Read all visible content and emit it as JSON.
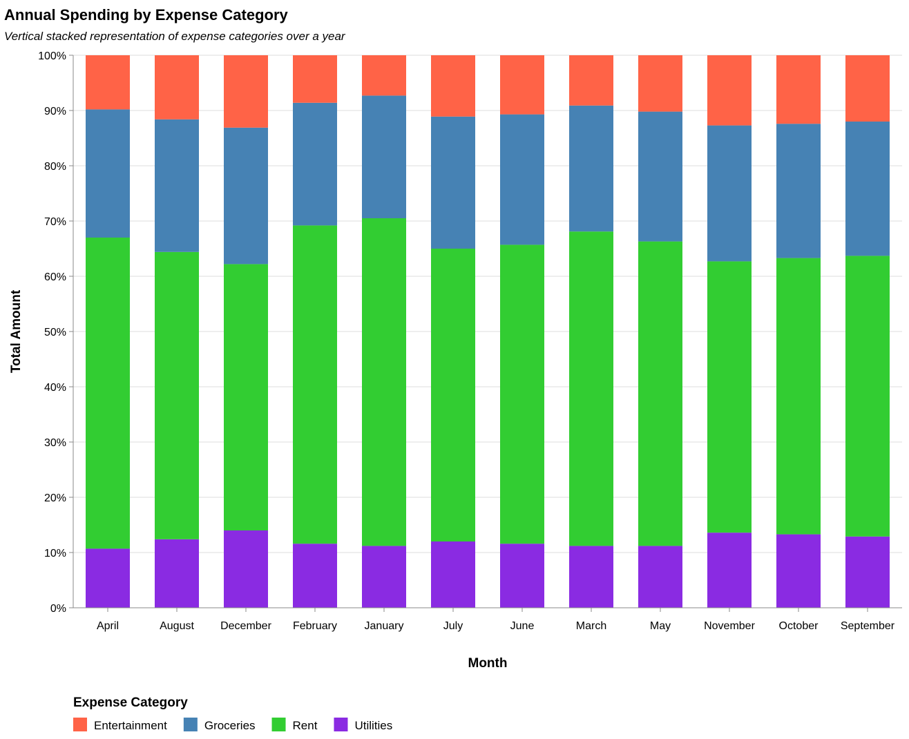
{
  "chart_data": {
    "type": "bar",
    "stacked": "normalize",
    "title": "Annual Spending by Expense Category",
    "subtitle": "Vertical stacked representation of expense categories over a year",
    "xlabel": "Month",
    "ylabel": "Total Amount",
    "ylim": [
      0,
      1
    ],
    "yticks": [
      "0%",
      "10%",
      "20%",
      "30%",
      "40%",
      "50%",
      "60%",
      "70%",
      "80%",
      "90%",
      "100%"
    ],
    "grid": true,
    "legend_title": "Expense Category",
    "legend_position": "bottom-left",
    "categories": [
      "April",
      "August",
      "December",
      "February",
      "January",
      "July",
      "June",
      "March",
      "May",
      "November",
      "October",
      "September"
    ],
    "series": [
      {
        "name": "Utilities",
        "color": "#8a2be2",
        "values": [
          0.107,
          0.124,
          0.14,
          0.116,
          0.112,
          0.12,
          0.116,
          0.112,
          0.112,
          0.136,
          0.133,
          0.129
        ]
      },
      {
        "name": "Rent",
        "color": "#32cd32",
        "values": [
          0.563,
          0.52,
          0.482,
          0.576,
          0.593,
          0.53,
          0.541,
          0.569,
          0.551,
          0.491,
          0.5,
          0.508
        ]
      },
      {
        "name": "Groceries",
        "color": "#4682b4",
        "values": [
          0.232,
          0.24,
          0.247,
          0.222,
          0.222,
          0.239,
          0.236,
          0.228,
          0.235,
          0.246,
          0.243,
          0.243
        ]
      },
      {
        "name": "Entertainment",
        "color": "#ff6347",
        "values": [
          0.098,
          0.116,
          0.131,
          0.086,
          0.073,
          0.111,
          0.107,
          0.091,
          0.102,
          0.127,
          0.124,
          0.12
        ]
      }
    ],
    "legend_order": [
      "Entertainment",
      "Groceries",
      "Rent",
      "Utilities"
    ]
  }
}
